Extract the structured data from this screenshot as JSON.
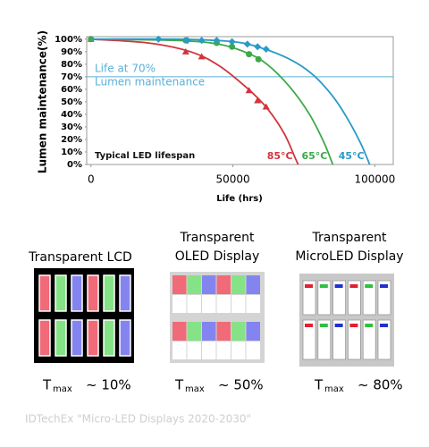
{
  "chart_data": {
    "type": "line",
    "ylabel": "Lumen maintenance(%)",
    "xlabel": "Life (hrs)",
    "xlim": [
      -1500,
      106500
    ],
    "xticks": [
      0,
      50000,
      100000
    ],
    "ylim": [
      0,
      102
    ],
    "yticks": [
      {
        "value": 0,
        "label": "0%"
      },
      {
        "value": 10,
        "label": "10%"
      },
      {
        "value": 20,
        "label": "20%"
      },
      {
        "value": 30,
        "label": "30%"
      },
      {
        "value": 40,
        "label": "40%"
      },
      {
        "value": 50,
        "label": "50%"
      },
      {
        "value": 60,
        "label": "60%"
      },
      {
        "value": 70,
        "label": "70%"
      },
      {
        "value": 80,
        "label": "80%"
      },
      {
        "value": 90,
        "label": "90%"
      },
      {
        "value": 100,
        "label": "100%"
      }
    ],
    "grid": false,
    "reference_line": {
      "value": 70,
      "color": "#5bb0d8",
      "labels": [
        "Life at 70%",
        "Lumen maintenance"
      ]
    },
    "annotation": "Typical LED lifespan",
    "series": [
      {
        "name": "85°C",
        "color": "#d0343c",
        "marker": "triangle",
        "x": [
          0,
          20000,
          35000,
          45000,
          55000,
          62000,
          68000,
          72000,
          73000
        ],
        "values": [
          100,
          97,
          90,
          79,
          61,
          45,
          25,
          5,
          0
        ],
        "markers": {
          "x": [
            0,
            33400,
            39000,
            55700,
            58700,
            61700
          ],
          "values": [
            100,
            90,
            86,
            59,
            51,
            46
          ]
        }
      },
      {
        "name": "65°C",
        "color": "#3ea84a",
        "marker": "circle",
        "x": [
          0,
          30000,
          45000,
          55000,
          62000,
          70000,
          77000,
          82000,
          85200
        ],
        "values": [
          100,
          99,
          96,
          89,
          80,
          62,
          40,
          18,
          0
        ],
        "markers": {
          "x": [
            0,
            33400,
            44300,
            49700,
            55700,
            59000
          ],
          "values": [
            100,
            99,
            97,
            94,
            88,
            84
          ]
        }
      },
      {
        "name": "45°C",
        "color": "#2a9ac8",
        "marker": "diamond",
        "x": [
          0,
          30000,
          50000,
          60000,
          70000,
          78000,
          85000,
          90000,
          95000,
          98200
        ],
        "values": [
          100,
          100,
          98,
          93,
          84,
          72,
          55,
          38,
          17,
          0
        ],
        "markers": {
          "x": [
            23800,
            34000,
            39000,
            44300,
            49700,
            55100,
            58700,
            61700
          ],
          "values": [
            100,
            99,
            99,
            99,
            98,
            96,
            94,
            92
          ]
        }
      }
    ]
  },
  "panels": [
    {
      "title": [
        "Transparent LCD"
      ],
      "t": "T",
      "sub": "max",
      "value": "~ 10%"
    },
    {
      "title": [
        "Transparent",
        "OLED Display"
      ],
      "t": "T",
      "sub": "max",
      "value": "~ 50%"
    },
    {
      "title": [
        "Transparent",
        "MicroLED Display"
      ],
      "t": "T",
      "sub": "max",
      "value": "~ 80%"
    }
  ],
  "source": "IDTechEx \"Micro-LED Displays 2020-2030\""
}
